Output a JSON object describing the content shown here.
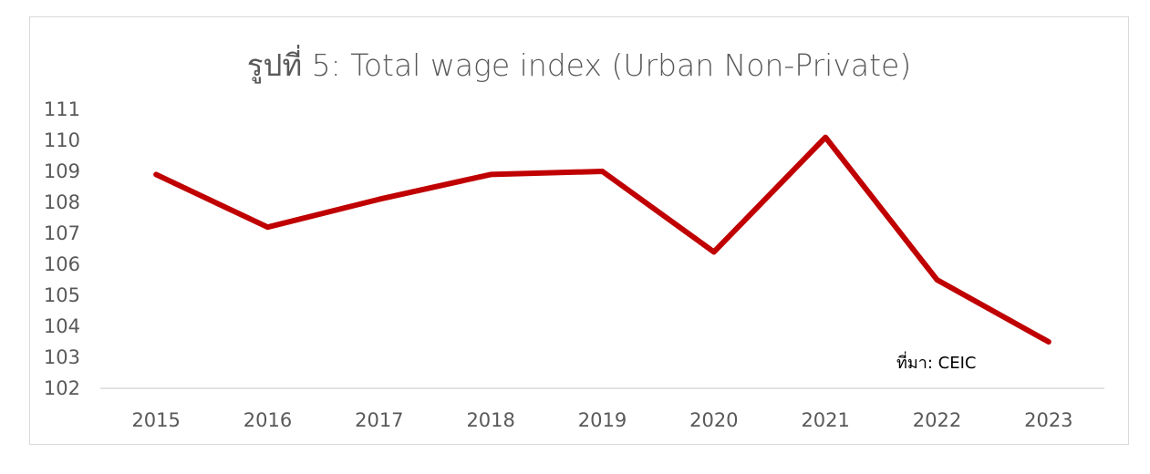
{
  "chart_data": {
    "type": "line",
    "title": "รูปที่ 5: Total wage index (Urban Non-Private)",
    "categories": [
      "2015",
      "2016",
      "2017",
      "2018",
      "2019",
      "2020",
      "2021",
      "2022",
      "2023"
    ],
    "series": [
      {
        "values": [
          108.9,
          107.2,
          108.1,
          108.9,
          109.0,
          106.4,
          110.1,
          105.5,
          103.5
        ],
        "color": "#c00000"
      }
    ],
    "y_ticks": [
      "102",
      "103",
      "104",
      "105",
      "106",
      "107",
      "108",
      "109",
      "110",
      "111"
    ],
    "ylim": [
      102,
      111
    ],
    "grid": false,
    "legend": "none",
    "annotation": "ที่มา: CEIC"
  },
  "colors": {
    "line": "#c00000",
    "axis": "#d9d9d9",
    "text": "#595959"
  }
}
